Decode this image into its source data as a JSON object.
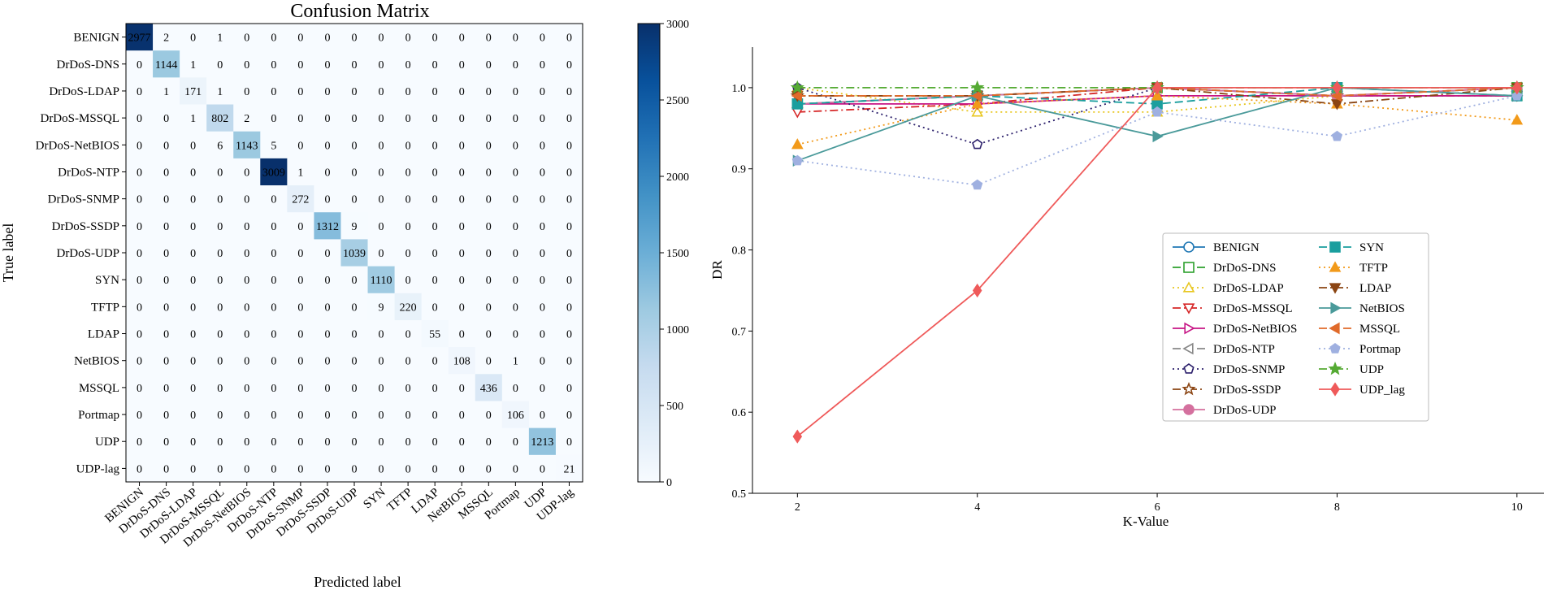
{
  "chart_data": [
    {
      "type": "heatmap",
      "title": "Confusion Matrix",
      "xlabel": "Predicted label",
      "ylabel": "True label",
      "labels": [
        "BENIGN",
        "DrDoS-DNS",
        "DrDoS-LDAP",
        "DrDoS-MSSQL",
        "DrDoS-NetBIOS",
        "DrDoS-NTP",
        "DrDoS-SNMP",
        "DrDoS-SSDP",
        "DrDoS-UDP",
        "SYN",
        "TFTP",
        "LDAP",
        "NetBIOS",
        "MSSQL",
        "Portmap",
        "UDP",
        "UDP-lag"
      ],
      "matrix": [
        [
          2977,
          2,
          0,
          1,
          0,
          0,
          0,
          0,
          0,
          0,
          0,
          0,
          0,
          0,
          0,
          0,
          0
        ],
        [
          0,
          1144,
          1,
          0,
          0,
          0,
          0,
          0,
          0,
          0,
          0,
          0,
          0,
          0,
          0,
          0,
          0
        ],
        [
          0,
          1,
          171,
          1,
          0,
          0,
          0,
          0,
          0,
          0,
          0,
          0,
          0,
          0,
          0,
          0,
          0
        ],
        [
          0,
          0,
          1,
          802,
          2,
          0,
          0,
          0,
          0,
          0,
          0,
          0,
          0,
          0,
          0,
          0,
          0
        ],
        [
          0,
          0,
          0,
          6,
          1143,
          5,
          0,
          0,
          0,
          0,
          0,
          0,
          0,
          0,
          0,
          0,
          0
        ],
        [
          0,
          0,
          0,
          0,
          0,
          3009,
          1,
          0,
          0,
          0,
          0,
          0,
          0,
          0,
          0,
          0,
          0
        ],
        [
          0,
          0,
          0,
          0,
          0,
          0,
          272,
          0,
          0,
          0,
          0,
          0,
          0,
          0,
          0,
          0,
          0
        ],
        [
          0,
          0,
          0,
          0,
          0,
          0,
          0,
          1312,
          9,
          0,
          0,
          0,
          0,
          0,
          0,
          0,
          0
        ],
        [
          0,
          0,
          0,
          0,
          0,
          0,
          0,
          0,
          1039,
          0,
          0,
          0,
          0,
          0,
          0,
          0,
          0
        ],
        [
          0,
          0,
          0,
          0,
          0,
          0,
          0,
          0,
          0,
          1110,
          0,
          0,
          0,
          0,
          0,
          0,
          0
        ],
        [
          0,
          0,
          0,
          0,
          0,
          0,
          0,
          0,
          0,
          9,
          220,
          0,
          0,
          0,
          0,
          0,
          0
        ],
        [
          0,
          0,
          0,
          0,
          0,
          0,
          0,
          0,
          0,
          0,
          0,
          55,
          0,
          0,
          0,
          0,
          0
        ],
        [
          0,
          0,
          0,
          0,
          0,
          0,
          0,
          0,
          0,
          0,
          0,
          0,
          108,
          0,
          1,
          0,
          0
        ],
        [
          0,
          0,
          0,
          0,
          0,
          0,
          0,
          0,
          0,
          0,
          0,
          0,
          0,
          436,
          0,
          0,
          0
        ],
        [
          0,
          0,
          0,
          0,
          0,
          0,
          0,
          0,
          0,
          0,
          0,
          0,
          0,
          0,
          106,
          0,
          0
        ],
        [
          0,
          0,
          0,
          0,
          0,
          0,
          0,
          0,
          0,
          0,
          0,
          0,
          0,
          0,
          0,
          1213,
          0
        ],
        [
          0,
          0,
          0,
          0,
          0,
          0,
          0,
          0,
          0,
          0,
          0,
          0,
          0,
          0,
          0,
          0,
          21
        ]
      ],
      "colorbar": {
        "min": 0,
        "max": 3000,
        "ticks": [
          0,
          500,
          1000,
          1500,
          2000,
          2500,
          3000
        ],
        "colormap": "Blues"
      }
    },
    {
      "type": "line",
      "xlabel": "K-Value",
      "ylabel": "DR",
      "x": [
        2,
        4,
        6,
        8,
        10
      ],
      "xticks": [
        2,
        4,
        6,
        8,
        10
      ],
      "xlim": [
        1.5,
        10.3
      ],
      "ylim": [
        0.5,
        1.05
      ],
      "yticks": [
        "0.5",
        "0.6",
        "0.7",
        "0.8",
        "0.9",
        "1.0"
      ],
      "legend_position": "center-right",
      "series": [
        {
          "name": "BENIGN",
          "values": [
            0.98,
            0.99,
            1.0,
            0.99,
            0.99
          ],
          "color": "#1f77b4",
          "dash": "solid",
          "marker": "circle",
          "filled": false
        },
        {
          "name": "DrDoS-DNS",
          "values": [
            0.98,
            0.99,
            1.0,
            1.0,
            1.0
          ],
          "color": "#2ca02c",
          "dash": "dashed",
          "marker": "square",
          "filled": false
        },
        {
          "name": "DrDoS-LDAP",
          "values": [
            1.0,
            0.97,
            0.97,
            0.99,
            0.99
          ],
          "color": "#e8c61f",
          "dash": "dotted",
          "marker": "triangle-up",
          "filled": false
        },
        {
          "name": "DrDoS-MSSQL",
          "values": [
            0.97,
            0.98,
            1.0,
            0.99,
            0.99
          ],
          "color": "#d62728",
          "dash": "dashdot",
          "marker": "triangle-down",
          "filled": false
        },
        {
          "name": "DrDoS-NetBIOS",
          "values": [
            0.98,
            0.98,
            0.99,
            0.99,
            0.99
          ],
          "color": "#c71585",
          "dash": "solid",
          "marker": "triangle-right",
          "filled": false
        },
        {
          "name": "DrDoS-NTP",
          "values": [
            0.99,
            0.99,
            1.0,
            0.99,
            1.0
          ],
          "color": "#888888",
          "dash": "dashed",
          "marker": "triangle-left",
          "filled": false
        },
        {
          "name": "DrDoS-SNMP",
          "values": [
            1.0,
            0.93,
            1.0,
            0.99,
            1.0
          ],
          "color": "#2b1f6b",
          "dash": "dotted",
          "marker": "pentagon",
          "filled": false
        },
        {
          "name": "DrDoS-SSDP",
          "values": [
            0.99,
            0.99,
            1.0,
            0.99,
            1.0
          ],
          "color": "#8b4513",
          "dash": "dashdot",
          "marker": "star",
          "filled": false
        },
        {
          "name": "DrDoS-UDP",
          "values": [
            0.98,
            0.99,
            1.0,
            0.99,
            1.0
          ],
          "color": "#d4709e",
          "dash": "solid",
          "marker": "circle",
          "filled": true
        },
        {
          "name": "SYN",
          "values": [
            0.98,
            0.99,
            0.98,
            1.0,
            0.99
          ],
          "color": "#1a9e9e",
          "dash": "dashed",
          "marker": "square",
          "filled": true
        },
        {
          "name": "TFTP",
          "values": [
            0.93,
            0.98,
            0.99,
            0.98,
            0.96
          ],
          "color": "#f29a1a",
          "dash": "dotted",
          "marker": "triangle-up",
          "filled": true
        },
        {
          "name": "LDAP",
          "values": [
            0.99,
            0.99,
            1.0,
            0.98,
            1.0
          ],
          "color": "#8b4513",
          "dash": "dashdot",
          "marker": "triangle-down",
          "filled": true
        },
        {
          "name": "NetBIOS",
          "values": [
            0.91,
            0.99,
            0.94,
            1.0,
            0.99
          ],
          "color": "#4a9a9a",
          "dash": "solid",
          "marker": "triangle-right",
          "filled": true
        },
        {
          "name": "MSSQL",
          "values": [
            0.99,
            0.99,
            1.0,
            0.99,
            1.0
          ],
          "color": "#e06a2a",
          "dash": "dashed",
          "marker": "triangle-left",
          "filled": true
        },
        {
          "name": "Portmap",
          "values": [
            0.91,
            0.88,
            0.97,
            0.94,
            0.99
          ],
          "color": "#9fb0e0",
          "dash": "dotted",
          "marker": "pentagon",
          "filled": true
        },
        {
          "name": "UDP",
          "values": [
            1.0,
            1.0,
            1.0,
            1.0,
            1.0
          ],
          "color": "#55aa33",
          "dash": "dashdot",
          "marker": "star",
          "filled": true
        },
        {
          "name": "UDP_lag",
          "values": [
            0.57,
            0.75,
            1.0,
            1.0,
            1.0
          ],
          "color": "#ef5a5a",
          "dash": "solid",
          "marker": "diamond",
          "filled": true
        }
      ]
    }
  ]
}
